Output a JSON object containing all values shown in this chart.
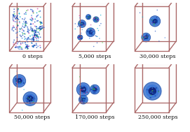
{
  "labels": [
    "0 steps",
    "5,000 steps",
    "30,000 steps",
    "50,000 steps",
    "170,000 steps",
    "250,000 steps"
  ],
  "grid_rows": 2,
  "grid_cols": 3,
  "bg_color": "#ffffff",
  "box_edge_color": "#aa6666",
  "box_edge_width": 0.9,
  "label_fontsize": 5.8,
  "label_color": "#111111",
  "fig_width": 2.71,
  "fig_height": 1.89,
  "dpi": 100
}
